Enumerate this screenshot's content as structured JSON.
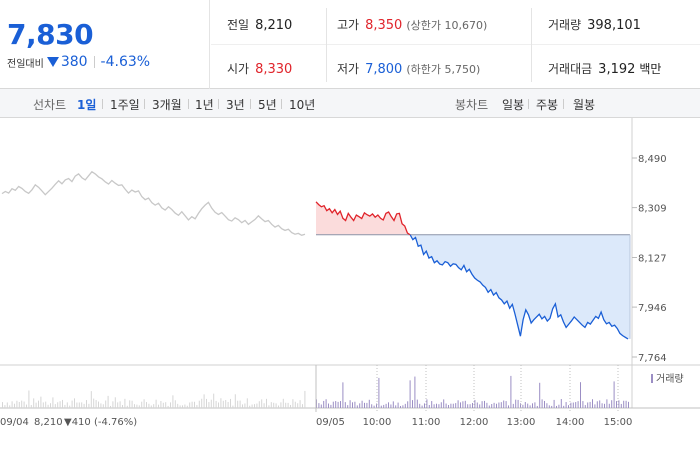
{
  "summary": {
    "price": "7,830",
    "change_label": "전일대비",
    "change": "380",
    "change_pct": "-4.63%"
  },
  "stats": {
    "prev_close_label": "전일",
    "prev_close": "8,210",
    "high_label": "고가",
    "high": "8,350",
    "high_note": "(상한가 10,670)",
    "volume_label": "거래량",
    "volume": "398,101",
    "open_label": "시가",
    "open": "8,330",
    "low_label": "저가",
    "low": "7,800",
    "low_note": "(하한가 5,750)",
    "amount_label": "거래대금",
    "amount": "3,192",
    "amount_unit": "백만"
  },
  "tabs": {
    "line_label": "선차트",
    "line_items": [
      "1일",
      "1주일",
      "3개월",
      "1년",
      "3년",
      "5년",
      "10년"
    ],
    "active_line": "1일",
    "candle_label": "봉차트",
    "candle_items": [
      "일봉",
      "주봉",
      "월봉"
    ]
  },
  "colors": {
    "up": "#e0242b",
    "down": "#1a5fd6",
    "prev": "#c8c8c8",
    "volume": "#9b8ec4"
  },
  "chart_data": {
    "type": "line",
    "y_ticks": [
      "8,490",
      "8,309",
      "8,127",
      "7,946",
      "7,764"
    ],
    "ylim": [
      7764,
      8490
    ],
    "baseline": 8210,
    "x_ticks": [
      "09/05",
      "10:00",
      "11:00",
      "12:00",
      "13:00",
      "14:00",
      "15:00"
    ],
    "prev_day_label": "09/04",
    "prev_day_close": "8,210",
    "prev_day_change": "▼410 (-4.76%)",
    "volume_legend": "거래량",
    "series": [
      {
        "date": "09/04",
        "values": [
          8360,
          8368,
          8362,
          8378,
          8372,
          8386,
          8379,
          8368,
          8361,
          8374,
          8392,
          8383,
          8370,
          8356,
          8368,
          8380,
          8394,
          8407,
          8396,
          8410,
          8415,
          8404,
          8424,
          8432,
          8418,
          8410,
          8425,
          8440,
          8432,
          8421,
          8414,
          8403,
          8395,
          8408,
          8398,
          8390,
          8392,
          8376,
          8362,
          8373,
          8366,
          8370,
          8349,
          8338,
          8344,
          8327,
          8318,
          8325,
          8308,
          8300,
          8312,
          8302,
          8289,
          8281,
          8294,
          8279,
          8264,
          8276,
          8268,
          8288,
          8305,
          8318,
          8328,
          8307,
          8292,
          8284,
          8291,
          8278,
          8265,
          8260,
          8272,
          8265,
          8254,
          8262,
          8248,
          8257,
          8266,
          8279,
          8268,
          8258,
          8262,
          8248,
          8238,
          8244,
          8232,
          8226,
          8230,
          8218,
          8212,
          8215,
          8208,
          8212
        ]
      },
      {
        "date": "09/05",
        "values": [
          8330,
          8320,
          8312,
          8316,
          8298,
          8305,
          8290,
          8302,
          8284,
          8296,
          8270,
          8262,
          8288,
          8274,
          8262,
          8282,
          8276,
          8269,
          8290,
          8283,
          8278,
          8286,
          8274,
          8282,
          8270,
          8264,
          8288,
          8293,
          8276,
          8262,
          8286,
          8288,
          8250,
          8242,
          8216,
          8210,
          8192,
          8200,
          8168,
          8172,
          8138,
          8150,
          8125,
          8130,
          8108,
          8115,
          8103,
          8100,
          8112,
          8108,
          8095,
          8104,
          8102,
          8090,
          8082,
          8098,
          8075,
          8084,
          8066,
          8052,
          8044,
          8038,
          8026,
          8018,
          8000,
          8010,
          7990,
          7999,
          7980,
          7972,
          7958,
          7968,
          7942,
          7956,
          7920,
          7880,
          7840,
          7900,
          7936,
          7918,
          7888,
          7900,
          7910,
          7920,
          7903,
          7912,
          7895,
          7905,
          7940,
          7958,
          7910,
          7918,
          7892,
          7872,
          7884,
          7896,
          7910,
          7900,
          7890,
          7880,
          7872,
          7890,
          7884,
          7898,
          7912,
          7905,
          7928,
          7900,
          7885,
          7890,
          7876,
          7880,
          7868,
          7850,
          7842,
          7836,
          7830
        ]
      }
    ],
    "volume_note": "per-minute volume bars below price line"
  }
}
